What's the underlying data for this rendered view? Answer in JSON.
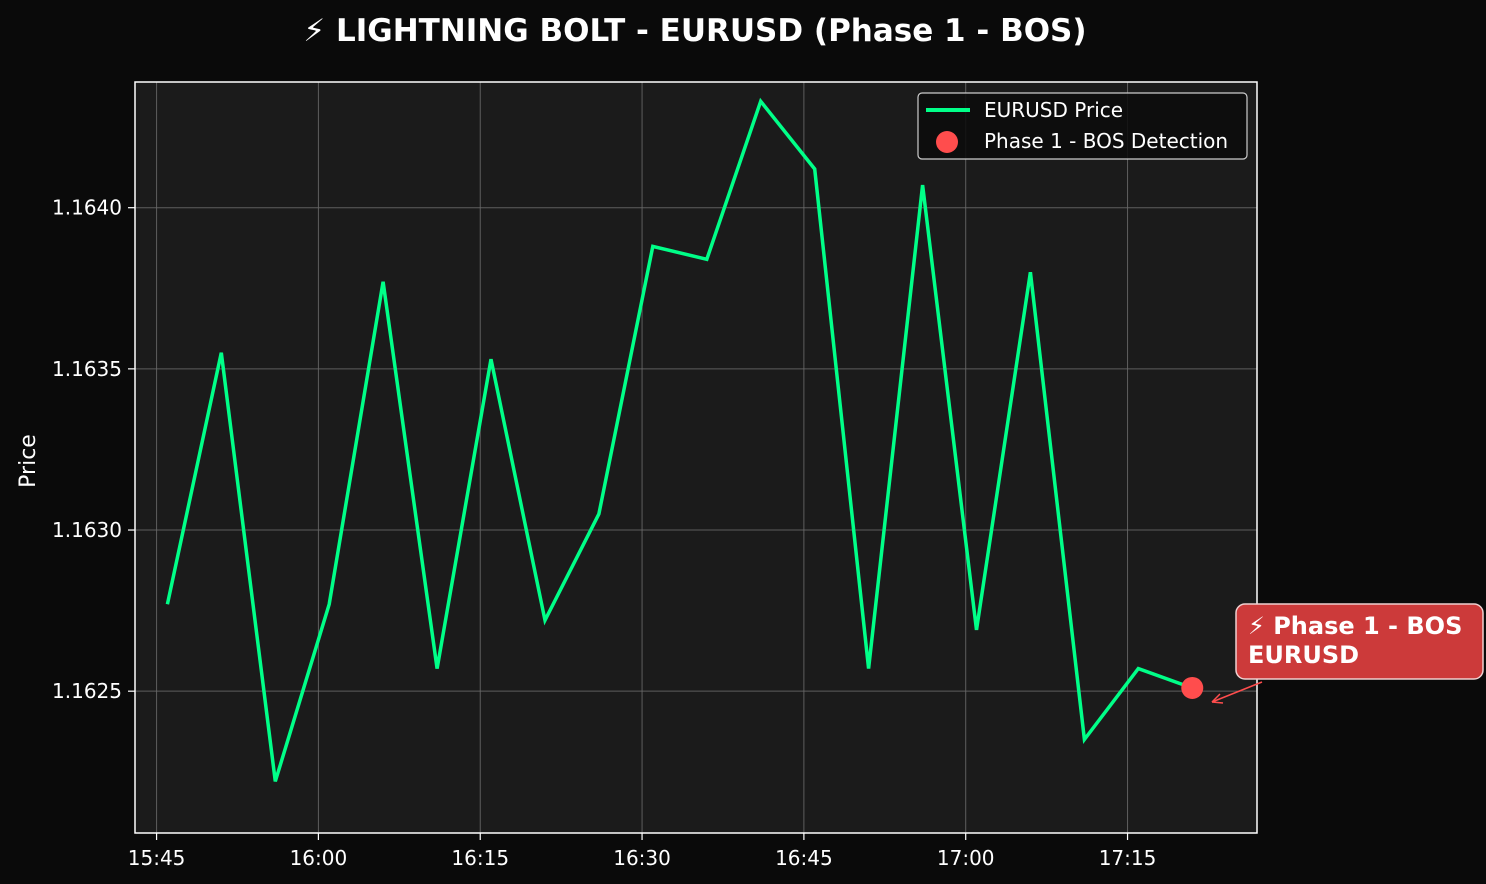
{
  "colors": {
    "background": "#0a0a0a",
    "plot_background": "#1b1b1b",
    "grid": "#6a6a6a",
    "line": "#00ff88",
    "marker": "#ff4d4d",
    "annotation_bg": "#cc3a3a",
    "text": "#ffffff"
  },
  "chart_data": {
    "type": "line",
    "title": "⚡ LIGHTNING BOLT - EURUSD (Phase 1 - BOS)",
    "xlabel": "",
    "ylabel": "Price",
    "x_ticks": [
      "15:45",
      "16:00",
      "16:15",
      "16:30",
      "16:45",
      "17:00",
      "17:15"
    ],
    "y_ticks": [
      "1.1625",
      "1.1630",
      "1.1635",
      "1.1640"
    ],
    "xlim": [
      "15:43",
      "17:27"
    ],
    "ylim": [
      1.16206,
      1.16439
    ],
    "grid": true,
    "legend_position": "top-right",
    "series": [
      {
        "name": "EURUSD Price",
        "x": [
          "15:46",
          "15:51",
          "15:56",
          "16:01",
          "16:06",
          "16:11",
          "16:16",
          "16:21",
          "16:26",
          "16:31",
          "16:36",
          "16:41",
          "16:46",
          "16:51",
          "16:56",
          "17:01",
          "17:06",
          "17:11",
          "17:16",
          "17:21"
        ],
        "values": [
          1.16277,
          1.16355,
          1.16222,
          1.16277,
          1.16377,
          1.16257,
          1.16353,
          1.16272,
          1.16305,
          1.16388,
          1.16384,
          1.16433,
          1.16412,
          1.16257,
          1.16407,
          1.16269,
          1.1638,
          1.16235,
          1.16257,
          1.16251
        ]
      }
    ],
    "markers": [
      {
        "name": "Phase 1 - BOS Detection",
        "x": "17:21",
        "y": 1.16251
      }
    ],
    "annotation": {
      "line1": "⚡ Phase 1 - BOS",
      "line2": "EURUSD",
      "x": "17:21",
      "y": 1.16251
    }
  }
}
